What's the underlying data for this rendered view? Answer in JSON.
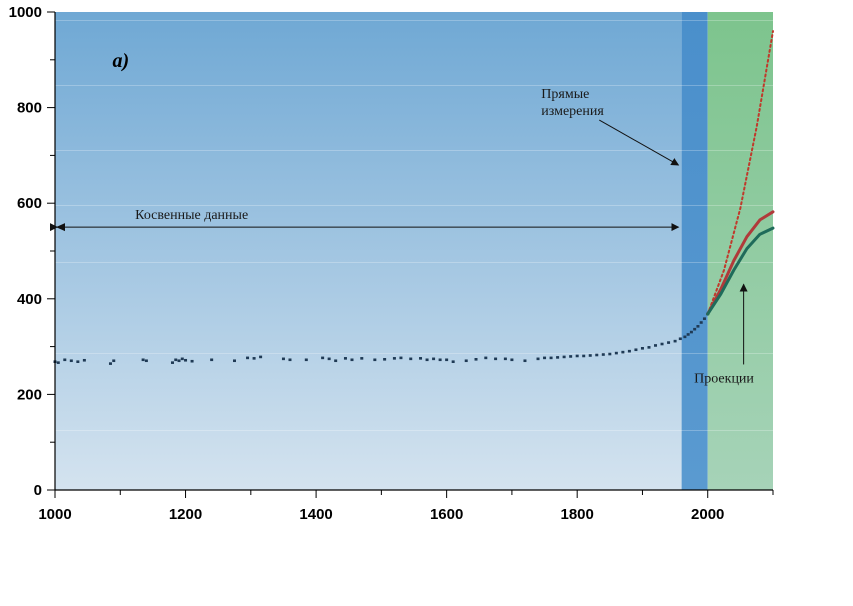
{
  "chart_data": {
    "type": "scatter",
    "panel_label": "a)",
    "xlim": [
      1000,
      2100
    ],
    "ylim": [
      0,
      1000
    ],
    "x_ticks": [
      1000,
      1200,
      1400,
      1600,
      1800,
      2000
    ],
    "y_ticks": [
      0,
      200,
      400,
      600,
      800,
      1000
    ],
    "grid": false,
    "background_regions": [
      {
        "x_range": [
          1000,
          1960
        ],
        "color": "#6fa8d4",
        "color_bottom": "#d4e3ef"
      },
      {
        "x_range": [
          1960,
          2000
        ],
        "color": "#4a8fcb",
        "color_bottom": "#5a9ad0"
      },
      {
        "x_range": [
          2000,
          2100
        ],
        "color": "#7dc48d",
        "color_bottom": "#a6d3b8"
      }
    ],
    "series": [
      {
        "kind": "points",
        "color": "#1f3a55",
        "points": [
          [
            1000,
            268
          ],
          [
            1005,
            266
          ],
          [
            1015,
            272
          ],
          [
            1025,
            270
          ],
          [
            1035,
            268
          ],
          [
            1045,
            271
          ],
          [
            1085,
            264
          ],
          [
            1090,
            270
          ],
          [
            1135,
            272
          ],
          [
            1140,
            270
          ],
          [
            1180,
            266
          ],
          [
            1185,
            272
          ],
          [
            1190,
            270
          ],
          [
            1195,
            274
          ],
          [
            1200,
            271
          ],
          [
            1210,
            269
          ],
          [
            1240,
            272
          ],
          [
            1275,
            270
          ],
          [
            1295,
            276
          ],
          [
            1305,
            275
          ],
          [
            1315,
            278
          ],
          [
            1350,
            274
          ],
          [
            1360,
            272
          ],
          [
            1385,
            272
          ],
          [
            1410,
            276
          ],
          [
            1420,
            274
          ],
          [
            1430,
            270
          ],
          [
            1445,
            275
          ],
          [
            1455,
            272
          ],
          [
            1470,
            275
          ],
          [
            1490,
            272
          ],
          [
            1505,
            273
          ],
          [
            1520,
            275
          ],
          [
            1530,
            276
          ],
          [
            1545,
            274
          ],
          [
            1560,
            275
          ],
          [
            1570,
            272
          ],
          [
            1580,
            274
          ],
          [
            1590,
            272
          ],
          [
            1600,
            272
          ],
          [
            1610,
            268
          ],
          [
            1630,
            270
          ],
          [
            1645,
            273
          ],
          [
            1660,
            276
          ],
          [
            1675,
            274
          ],
          [
            1690,
            274
          ],
          [
            1700,
            272
          ],
          [
            1720,
            270
          ],
          [
            1740,
            274
          ],
          [
            1750,
            276
          ],
          [
            1760,
            276
          ],
          [
            1770,
            277
          ],
          [
            1780,
            278
          ],
          [
            1790,
            279
          ],
          [
            1800,
            280
          ],
          [
            1810,
            280
          ],
          [
            1820,
            281
          ],
          [
            1830,
            282
          ],
          [
            1840,
            283
          ],
          [
            1850,
            284
          ],
          [
            1860,
            286
          ],
          [
            1870,
            288
          ],
          [
            1880,
            290
          ],
          [
            1890,
            293
          ],
          [
            1900,
            296
          ],
          [
            1910,
            298
          ],
          [
            1920,
            302
          ],
          [
            1930,
            305
          ],
          [
            1940,
            308
          ],
          [
            1950,
            311
          ],
          [
            1958,
            316
          ],
          [
            1965,
            320
          ],
          [
            1970,
            325
          ],
          [
            1975,
            330
          ],
          [
            1980,
            336
          ],
          [
            1985,
            342
          ],
          [
            1990,
            350
          ],
          [
            1995,
            358
          ],
          [
            2000,
            368
          ]
        ]
      },
      {
        "kind": "line",
        "dashed": true,
        "color": "#c0392b",
        "points": [
          [
            2000,
            368
          ],
          [
            2025,
            460
          ],
          [
            2050,
            590
          ],
          [
            2075,
            760
          ],
          [
            2100,
            960
          ]
        ]
      },
      {
        "kind": "line",
        "color": "#b03a3a",
        "points": [
          [
            2000,
            368
          ],
          [
            2020,
            420
          ],
          [
            2040,
            480
          ],
          [
            2060,
            530
          ],
          [
            2080,
            565
          ],
          [
            2100,
            582
          ]
        ]
      },
      {
        "kind": "line",
        "color": "#1f6b5a",
        "points": [
          [
            2000,
            368
          ],
          [
            2020,
            410
          ],
          [
            2040,
            460
          ],
          [
            2060,
            505
          ],
          [
            2080,
            535
          ],
          [
            2100,
            548
          ]
        ]
      }
    ],
    "annotations": {
      "indirect": {
        "text": "Косвенные данные",
        "x_from": 1000,
        "x_to": 1955,
        "y": 550
      },
      "direct": {
        "lines": [
          "Прямые",
          "измерения"
        ],
        "text_at": [
          1745,
          820
        ],
        "arrow_to": [
          1955,
          680
        ]
      },
      "projections": {
        "text": "Проекции",
        "text_at": [
          2025,
          225
        ],
        "arrow_to": [
          2055,
          430
        ]
      }
    }
  }
}
